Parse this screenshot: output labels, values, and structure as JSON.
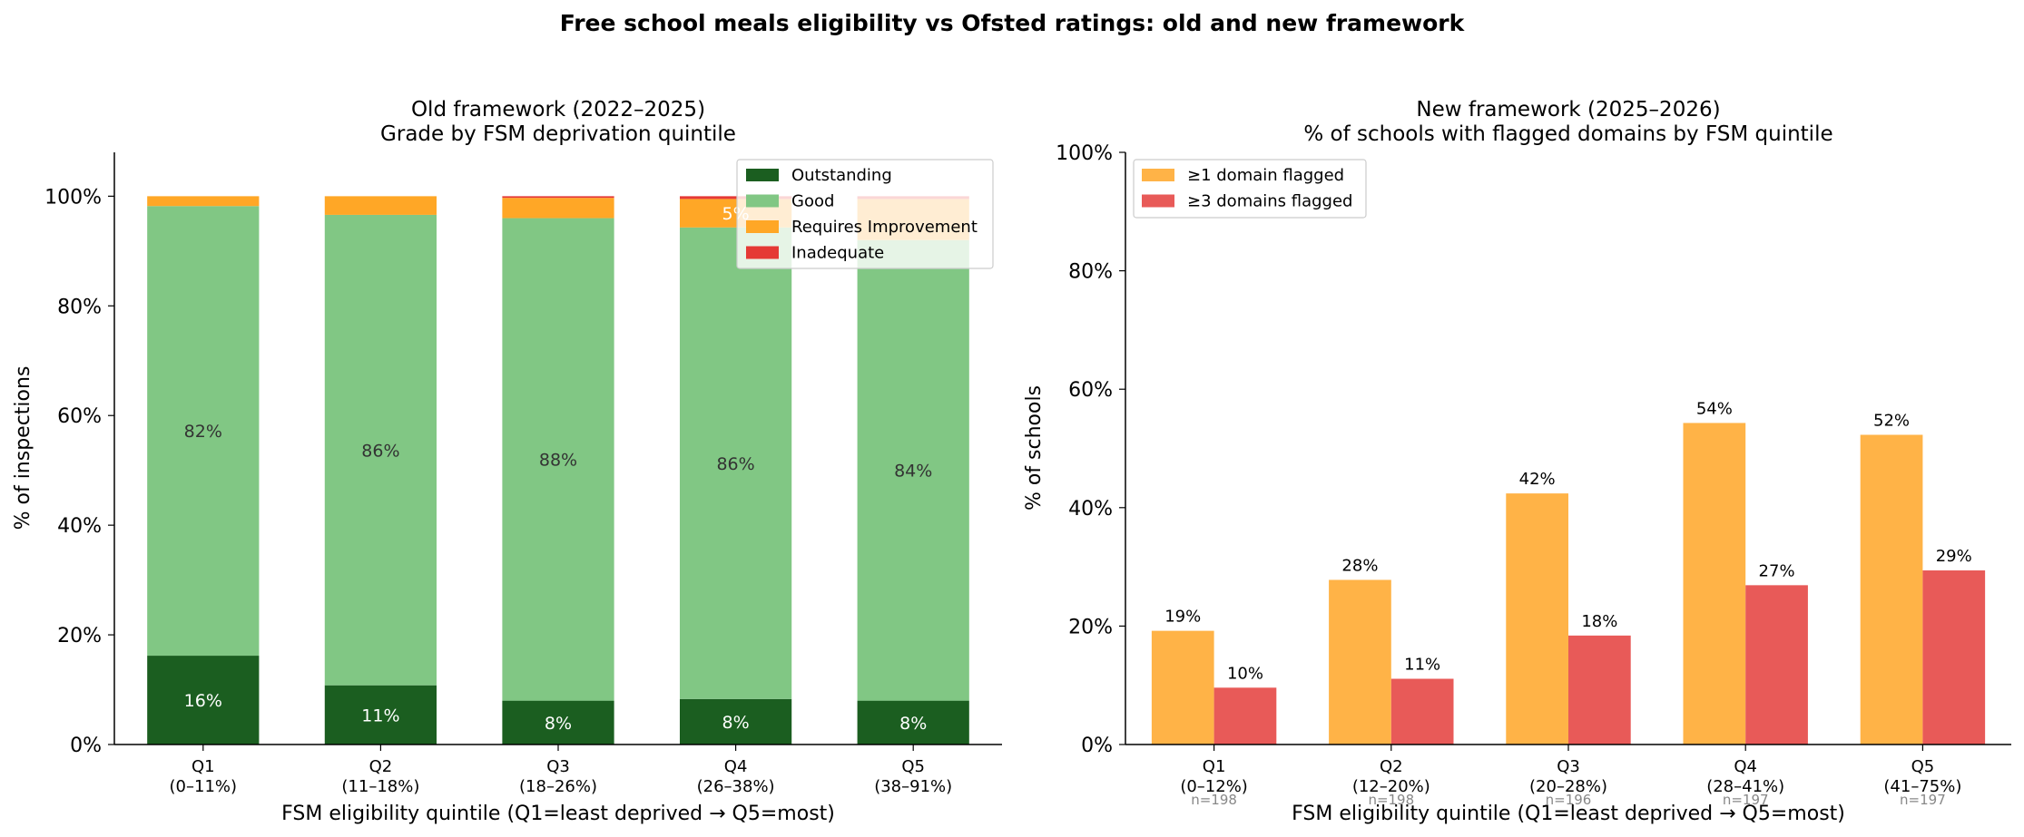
{
  "suptitle": "Free school meals eligibility vs Ofsted ratings: old and new framework",
  "chart_data": [
    {
      "type": "bar",
      "stacked": true,
      "title": "Old framework (2022–2025)",
      "subtitle": "Grade by FSM deprivation quintile",
      "xlabel": "FSM eligibility quintile (Q1=least deprived → Q5=most)",
      "ylabel": "% of inspections",
      "ylim": [
        0,
        108
      ],
      "yticks": [
        "0%",
        "20%",
        "40%",
        "60%",
        "80%",
        "100%"
      ],
      "categories": [
        "Q1",
        "Q2",
        "Q3",
        "Q4",
        "Q5"
      ],
      "category_ranges": [
        "(0–11%)",
        "(11–18%)",
        "(18–26%)",
        "(26–38%)",
        "(38–91%)"
      ],
      "legend_position": "top-right",
      "grid": false,
      "series": [
        {
          "name": "Outstanding",
          "color": "#1b5e20",
          "values": [
            16.2,
            10.8,
            8.0,
            8.3,
            8.0
          ],
          "labels": [
            "16%",
            "11%",
            "8%",
            "8%",
            "8%"
          ],
          "label_color": "#ffffff"
        },
        {
          "name": "Good",
          "color": "#81c784",
          "values": [
            82.0,
            85.8,
            88.0,
            86.0,
            84.0
          ],
          "labels": [
            "82%",
            "86%",
            "88%",
            "86%",
            "84%"
          ],
          "label_color": "#333333"
        },
        {
          "name": "Requires Improvement",
          "color": "#ffa726",
          "values": [
            1.8,
            3.4,
            3.7,
            5.2,
            7.5
          ],
          "labels": [
            "",
            "",
            "",
            "5%",
            ""
          ],
          "label_color": "#ffffff"
        },
        {
          "name": "Inadequate",
          "color": "#e53935",
          "values": [
            0.0,
            0.0,
            0.3,
            0.5,
            0.5
          ],
          "labels": [
            "",
            "",
            "",
            "",
            ""
          ],
          "label_color": "#ffffff"
        }
      ]
    },
    {
      "type": "bar",
      "title": "New framework (2025–2026)",
      "subtitle": "% of schools with flagged domains by FSM quintile",
      "xlabel": "FSM eligibility quintile (Q1=least deprived → Q5=most)",
      "ylabel": "% of schools",
      "ylim": [
        0,
        100
      ],
      "yticks": [
        "0%",
        "20%",
        "40%",
        "60%",
        "80%",
        "100%"
      ],
      "categories": [
        "Q1",
        "Q2",
        "Q3",
        "Q4",
        "Q5"
      ],
      "category_ranges": [
        "(0–12%)",
        "(12–20%)",
        "(20–28%)",
        "(28–41%)",
        "(41–75%)"
      ],
      "category_counts": [
        "n=198",
        "n=198",
        "n=196",
        "n=197",
        "n=197"
      ],
      "legend_position": "top-left",
      "grid": false,
      "series": [
        {
          "name": "≥1 domain flagged",
          "color": "#ffb347",
          "values": [
            19.2,
            27.8,
            42.4,
            54.3,
            52.3
          ],
          "labels": [
            "19%",
            "28%",
            "42%",
            "54%",
            "52%"
          ]
        },
        {
          "name": "≥3 domains flagged",
          "color": "#e85a58",
          "values": [
            9.6,
            11.1,
            18.4,
            26.9,
            29.4
          ],
          "labels": [
            "10%",
            "11%",
            "18%",
            "27%",
            "29%"
          ]
        }
      ]
    }
  ]
}
